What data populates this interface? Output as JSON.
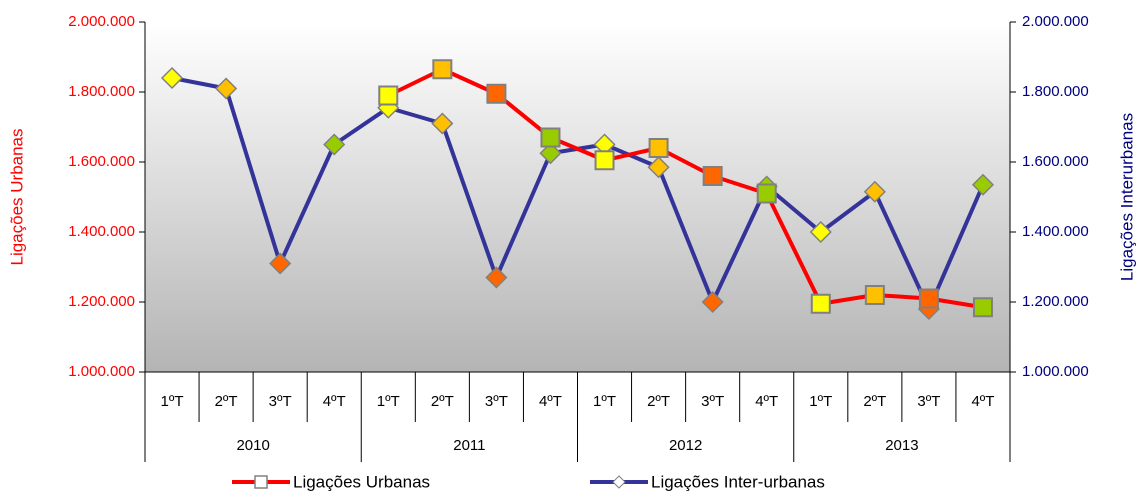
{
  "chart_data": {
    "type": "line",
    "y_label": "Ligações Urbanas",
    "y2_label": "Ligações Interurbanas",
    "categories": [
      "1ºT",
      "2ºT",
      "3ºT",
      "4ºT",
      "1ºT",
      "2ºT",
      "3ºT",
      "4ºT",
      "1ºT",
      "2ºT",
      "3ºT",
      "4ºT",
      "1ºT",
      "2ºT",
      "3ºT",
      "4ºT"
    ],
    "category_groups": [
      "2010",
      "2011",
      "2012",
      "2013"
    ],
    "ylim": [
      1000000,
      2000000
    ],
    "yticks": [
      {
        "value": 1000000,
        "label": "1.000.000"
      },
      {
        "value": 1200000,
        "label": "1.200.000"
      },
      {
        "value": 1400000,
        "label": "1.400.000"
      },
      {
        "value": 1600000,
        "label": "1.600.000"
      },
      {
        "value": 1800000,
        "label": "1.800.000"
      },
      {
        "value": 2000000,
        "label": "2.000.000"
      }
    ],
    "y2lim": [
      1000000,
      2000000
    ],
    "y2ticks": [
      {
        "value": 1000000,
        "label": "1.000.000"
      },
      {
        "value": 1200000,
        "label": "1.200.000"
      },
      {
        "value": 1400000,
        "label": "1.400.000"
      },
      {
        "value": 1600000,
        "label": "1.600.000"
      },
      {
        "value": 1800000,
        "label": "1.800.000"
      },
      {
        "value": 2000000,
        "label": "2.000.000"
      }
    ],
    "grid": false,
    "legend": "bottom",
    "series": [
      {
        "name": "Ligações Urbanas",
        "color": "#ff0000",
        "marker": "square",
        "values": [
          null,
          null,
          null,
          null,
          1790000,
          1865000,
          1795000,
          1670000,
          1605000,
          1640000,
          1560000,
          1510000,
          1195000,
          1220000,
          1210000,
          1185000
        ],
        "marker_colors": [
          null,
          null,
          null,
          null,
          "#ffff00",
          "#ffc000",
          "#ff6600",
          "#99cc00",
          "#ffff00",
          "#ffc000",
          "#ff6600",
          "#99cc00",
          "#ffff00",
          "#ffc000",
          "#ff6600",
          "#99cc00"
        ]
      },
      {
        "name": "Ligações Inter-urbanas",
        "color": "#333399",
        "marker": "diamond",
        "axis": "y2",
        "values": [
          1840000,
          1810000,
          1310000,
          1650000,
          1755000,
          1710000,
          1270000,
          1625000,
          1650000,
          1585000,
          1200000,
          1530000,
          1400000,
          1515000,
          1180000,
          1535000
        ],
        "marker_colors": [
          "#ffff00",
          "#ffc000",
          "#ff6600",
          "#99cc00",
          "#ffff00",
          "#ffc000",
          "#ff6600",
          "#99cc00",
          "#ffff00",
          "#ffc000",
          "#ff6600",
          "#99cc00",
          "#ffff00",
          "#ffc000",
          "#ff6600",
          "#99cc00"
        ]
      }
    ]
  }
}
